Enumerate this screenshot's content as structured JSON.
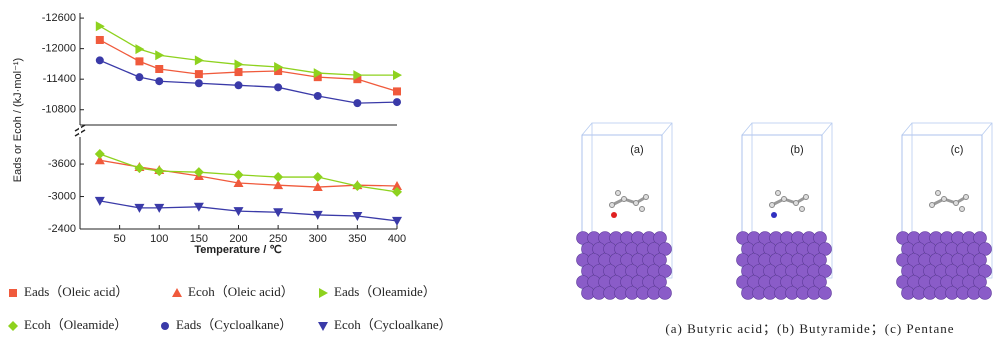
{
  "chart_data": [
    {
      "type": "line",
      "y_label": "Eads or Ecoh / (kJ·mol⁻¹)",
      "xlim": [
        0,
        400
      ],
      "ylim": [
        -10500,
        -12700
      ],
      "yticks": [
        -12600,
        -12000,
        -11400,
        -10800
      ],
      "series": [
        {
          "name": "Eads（Oleic acid）",
          "color": "#f05a3c",
          "marker": "square",
          "x": [
            25,
            75,
            100,
            150,
            200,
            250,
            300,
            350,
            400
          ],
          "values": [
            -12170,
            -11750,
            -11600,
            -11500,
            -11540,
            -11560,
            -11440,
            -11400,
            -11160
          ]
        },
        {
          "name": "Eads（Oleamide）",
          "color": "#8ed21e",
          "marker": "triangle-right",
          "x": [
            25,
            75,
            100,
            150,
            200,
            250,
            300,
            350,
            400
          ],
          "values": [
            -12440,
            -11990,
            -11870,
            -11770,
            -11690,
            -11640,
            -11520,
            -11480,
            -11480
          ]
        },
        {
          "name": "Eads（Cycloalkane）",
          "color": "#3a3aa8",
          "marker": "circle",
          "x": [
            25,
            75,
            100,
            150,
            200,
            250,
            300,
            350,
            400
          ],
          "values": [
            -11770,
            -11440,
            -11360,
            -11320,
            -11280,
            -11240,
            -11070,
            -10930,
            -10950
          ]
        }
      ]
    },
    {
      "type": "line",
      "x_label": "Temperature / ℃",
      "xlim": [
        0,
        400
      ],
      "xticks": [
        50,
        100,
        150,
        200,
        250,
        300,
        350,
        400
      ],
      "ylim": [
        -2400,
        -4100
      ],
      "yticks": [
        -3600,
        -3000,
        -2400
      ],
      "series": [
        {
          "name": "Ecoh（Oleic acid）",
          "color": "#f05a3c",
          "marker": "triangle-up",
          "x": [
            25,
            75,
            100,
            150,
            200,
            250,
            300,
            350,
            400
          ],
          "values": [
            -3670,
            -3545,
            -3490,
            -3380,
            -3250,
            -3210,
            -3175,
            -3210,
            -3195
          ]
        },
        {
          "name": "Ecoh（Oleamide）",
          "color": "#8ed21e",
          "marker": "diamond",
          "x": [
            25,
            75,
            100,
            150,
            200,
            250,
            300,
            350,
            400
          ],
          "values": [
            -3785,
            -3525,
            -3470,
            -3450,
            -3400,
            -3360,
            -3360,
            -3195,
            -3085
          ]
        },
        {
          "name": "Ecoh（Cycloalkane）",
          "color": "#3a3aa8",
          "marker": "triangle-down",
          "x": [
            25,
            75,
            100,
            150,
            200,
            250,
            300,
            350,
            400
          ],
          "values": [
            -2920,
            -2790,
            -2790,
            -2810,
            -2730,
            -2710,
            -2660,
            -2640,
            -2550
          ]
        }
      ]
    }
  ],
  "figure": {
    "panels": [
      "(a)",
      "(b)",
      "(c)"
    ],
    "caption": "(a) Butyric acid；(b) Butyramide；(c) Pentane"
  }
}
